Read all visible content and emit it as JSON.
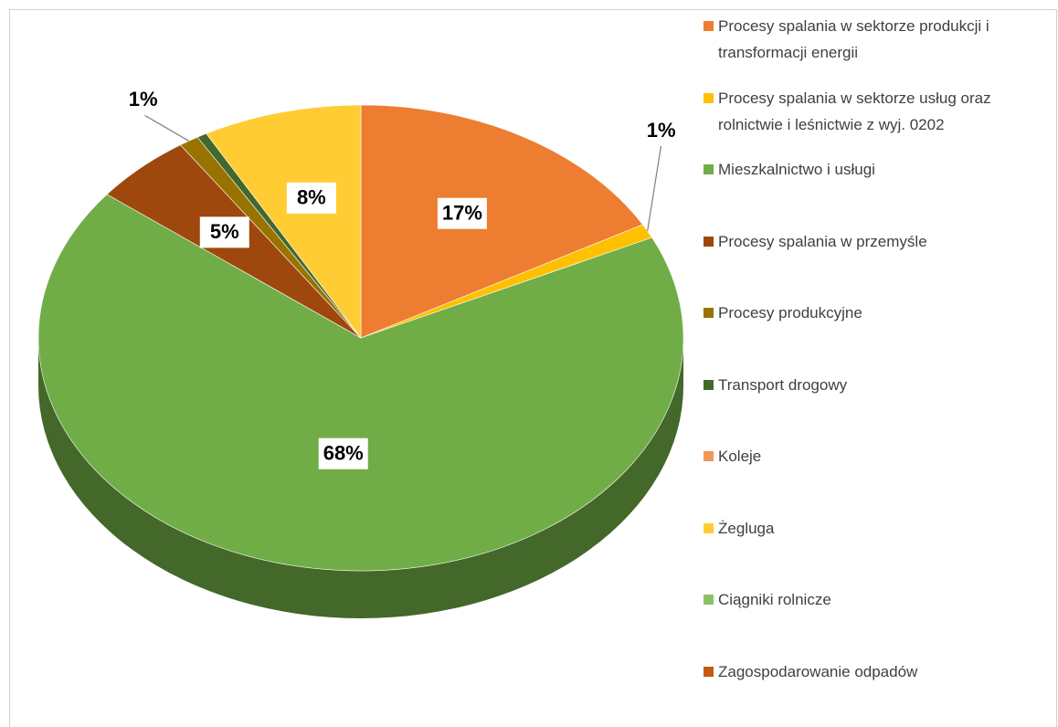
{
  "chart_data": {
    "type": "pie3d",
    "categories": [
      "Procesy spalania w sektorze produkcji i transformacji energii",
      "Procesy spalania w sektorze usług oraz rolnictwie i leśnictwie z wyj. 0202",
      "Mieszkalnictwo i usługi",
      "Procesy spalania w przemyśle",
      "Procesy produkcyjne",
      "Transport drogowy",
      "Koleje",
      "Żegluga",
      "Ciągniki rolnicze",
      "Zagospodarowanie odpadów"
    ],
    "values": [
      17,
      1,
      68,
      5,
      1,
      0.5,
      0,
      8,
      0,
      0
    ],
    "value_labels": [
      "17%",
      "1%",
      "68%",
      "5%",
      "1%",
      null,
      null,
      "8%",
      null,
      null
    ],
    "colors": [
      "#ed7d31",
      "#ffc000",
      "#70ad47",
      "#9e480e",
      "#997300",
      "#43682b",
      "#f1975a",
      "#ffcd33",
      "#8cc168",
      "#c55a11"
    ],
    "legend": "right"
  }
}
